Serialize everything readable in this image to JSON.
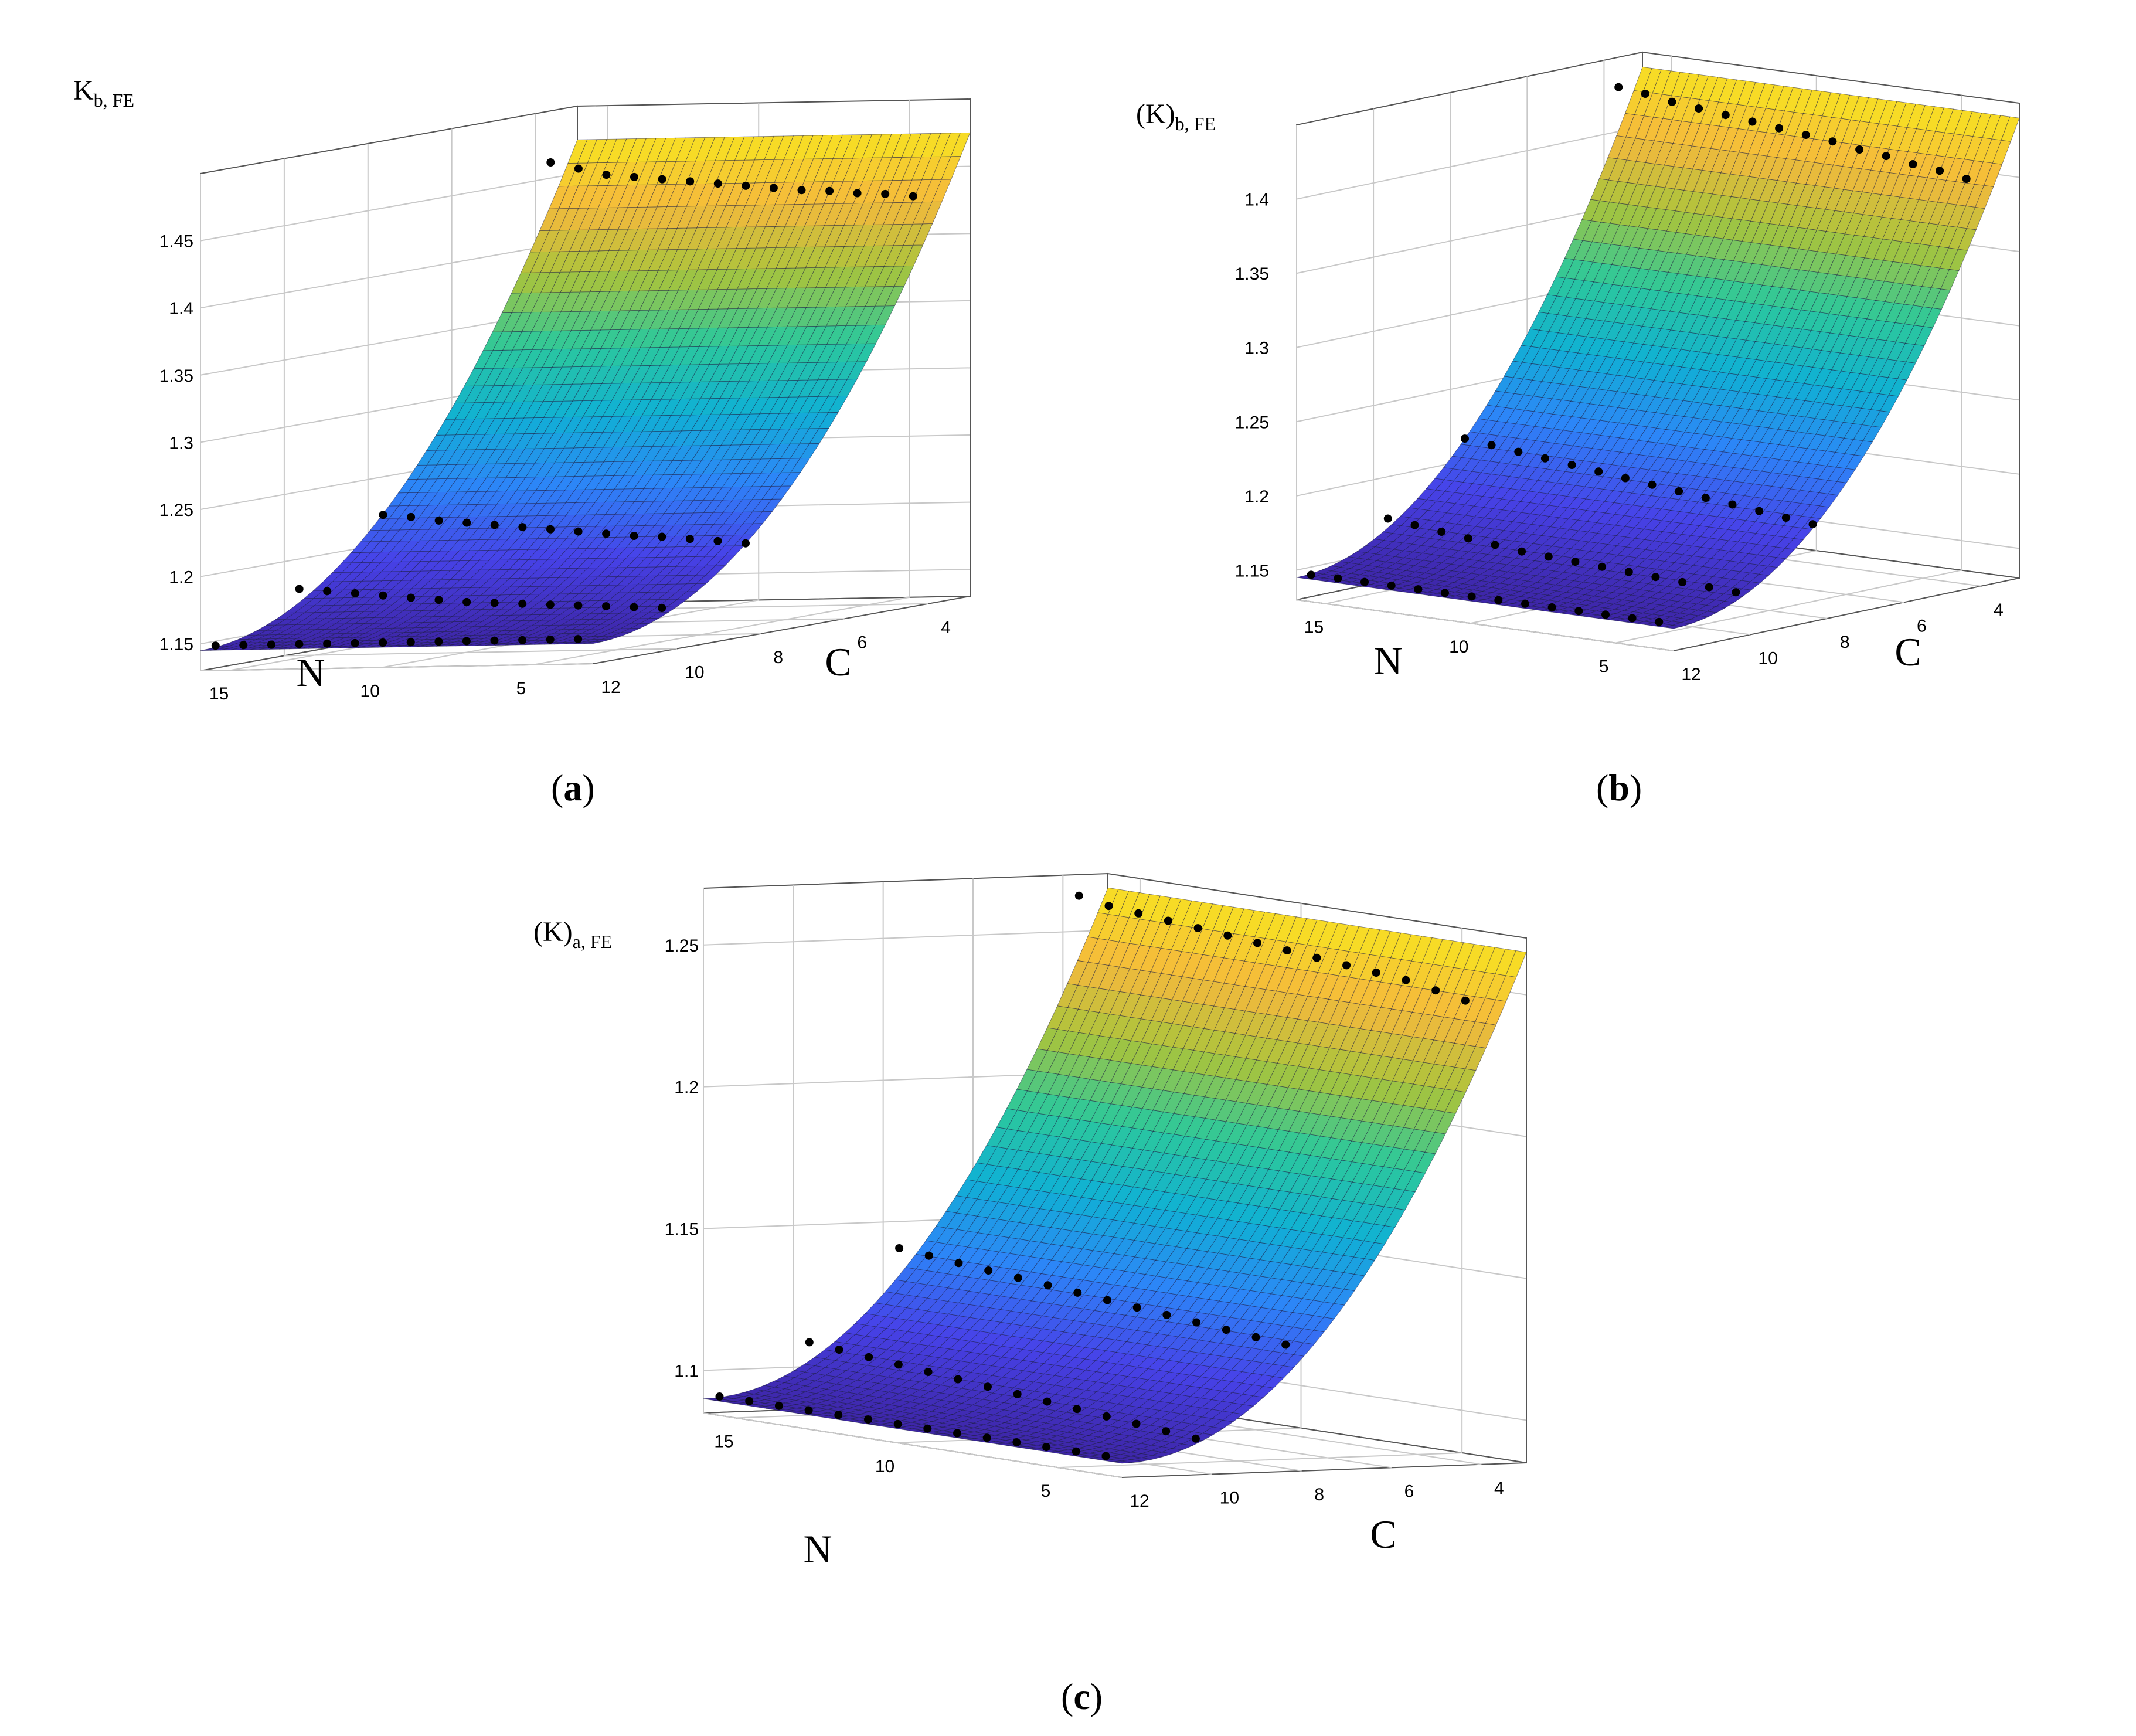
{
  "colors": {
    "surface_colormap": [
      "#3e26a8",
      "#4742e8",
      "#2d85f8",
      "#10b1d3",
      "#2dc89a",
      "#a8c43c",
      "#f5b93c",
      "#f8e221"
    ],
    "grid": "#c8c8c8",
    "markers": "#000000"
  },
  "chart_data": [
    {
      "type": "surface3d",
      "caption": "(a)",
      "caption_letter": "a",
      "zlabel_main": "K",
      "zlabel_sub": "b, FE",
      "xlabel": "N",
      "ylabel": "C",
      "x_ticks": [
        "15",
        "10",
        "5"
      ],
      "y_ticks": [
        "4",
        "6",
        "8",
        "10",
        "12"
      ],
      "z_ticks": [
        "1.15",
        "1.2",
        "1.25",
        "1.3",
        "1.35",
        "1.4",
        "1.45"
      ],
      "x_range": [
        3,
        16
      ],
      "y_range": [
        3,
        12
      ],
      "z_range": [
        1.13,
        1.5
      ],
      "surface_model": {
        "z_min": 1.145,
        "z_max": 1.475,
        "exponent": 2.0
      },
      "marker_rows": [
        {
          "C": 4,
          "z": [
            1.46,
            1.455,
            1.45,
            1.448,
            1.446,
            1.444,
            1.442,
            1.44,
            1.438,
            1.436,
            1.435,
            1.433,
            1.432,
            1.43
          ]
        },
        {
          "C": 8,
          "z": [
            1.22,
            1.218,
            1.215,
            1.213,
            1.211,
            1.209,
            1.207,
            1.205,
            1.203,
            1.201,
            1.2,
            1.198,
            1.196,
            1.194
          ]
        },
        {
          "C": 10,
          "z": [
            1.176,
            1.174,
            1.172,
            1.17,
            1.168,
            1.166,
            1.164,
            1.163,
            1.162,
            1.161,
            1.16,
            1.159,
            1.158,
            1.157
          ]
        },
        {
          "C": 12,
          "z": [
            1.145,
            1.145,
            1.145,
            1.145,
            1.145,
            1.145,
            1.145,
            1.145,
            1.145,
            1.145,
            1.145,
            1.145,
            1.145,
            1.145
          ]
        }
      ]
    },
    {
      "type": "surface3d",
      "caption": "(b)",
      "caption_letter": "b",
      "zlabel_main": "(K)",
      "zlabel_sub": "b, FE",
      "xlabel": "N",
      "ylabel": "C",
      "x_ticks": [
        "15",
        "10",
        "5"
      ],
      "y_ticks": [
        "4",
        "6",
        "8",
        "10",
        "12"
      ],
      "z_ticks": [
        "1.15",
        "1.2",
        "1.25",
        "1.3",
        "1.35",
        "1.4"
      ],
      "x_range": [
        3,
        16
      ],
      "y_range": [
        3,
        12
      ],
      "z_range": [
        1.13,
        1.45
      ],
      "surface_model": {
        "z_min": 1.145,
        "z_max": 1.44,
        "exponent": 2.0
      },
      "marker_rows": [
        {
          "C": 4,
          "z": [
            1.43,
            1.428,
            1.425,
            1.423,
            1.421,
            1.419,
            1.417,
            1.415,
            1.413,
            1.41,
            1.408,
            1.405,
            1.403,
            1.4
          ]
        },
        {
          "C": 8,
          "z": [
            1.215,
            1.213,
            1.211,
            1.209,
            1.207,
            1.205,
            1.203,
            1.201,
            1.199,
            1.197,
            1.195,
            1.193,
            1.191,
            1.189
          ]
        },
        {
          "C": 10,
          "z": [
            1.172,
            1.17,
            1.168,
            1.166,
            1.164,
            1.162,
            1.161,
            1.16,
            1.159,
            1.158,
            1.157,
            1.156,
            1.155,
            1.154
          ]
        },
        {
          "C": 12,
          "z": [
            1.145,
            1.145,
            1.145,
            1.145,
            1.145,
            1.145,
            1.145,
            1.145,
            1.145,
            1.145,
            1.145,
            1.145,
            1.145,
            1.145
          ]
        }
      ]
    },
    {
      "type": "surface3d",
      "caption": "(c)",
      "caption_letter": "c",
      "zlabel_main": "(K)",
      "zlabel_sub": "a, FE",
      "xlabel": "N",
      "ylabel": "C",
      "x_ticks": [
        "15",
        "10",
        "5"
      ],
      "y_ticks": [
        "4",
        "6",
        "8",
        "10",
        "12"
      ],
      "z_ticks": [
        "1.1",
        "1.15",
        "1.2",
        "1.25"
      ],
      "x_range": [
        3,
        16
      ],
      "y_range": [
        3,
        12
      ],
      "z_range": [
        1.085,
        1.27
      ],
      "surface_model": {
        "z_min": 1.09,
        "z_max": 1.265,
        "exponent": 2.0
      },
      "marker_rows": [
        {
          "C": 4,
          "z": [
            1.262,
            1.26,
            1.259,
            1.258,
            1.257,
            1.256,
            1.255,
            1.254,
            1.253,
            1.252,
            1.251,
            1.25,
            1.248,
            1.246
          ]
        },
        {
          "C": 8,
          "z": [
            1.14,
            1.139,
            1.138,
            1.137,
            1.136,
            1.135,
            1.134,
            1.133,
            1.132,
            1.131,
            1.13,
            1.129,
            1.128,
            1.127
          ]
        },
        {
          "C": 10,
          "z": [
            1.108,
            1.107,
            1.106,
            1.105,
            1.104,
            1.103,
            1.102,
            1.101,
            1.1,
            1.099,
            1.098,
            1.097,
            1.096,
            1.095
          ]
        },
        {
          "C": 12,
          "z": [
            1.09,
            1.09,
            1.09,
            1.09,
            1.09,
            1.09,
            1.09,
            1.09,
            1.09,
            1.09,
            1.09,
            1.09,
            1.09,
            1.09
          ]
        }
      ]
    }
  ]
}
